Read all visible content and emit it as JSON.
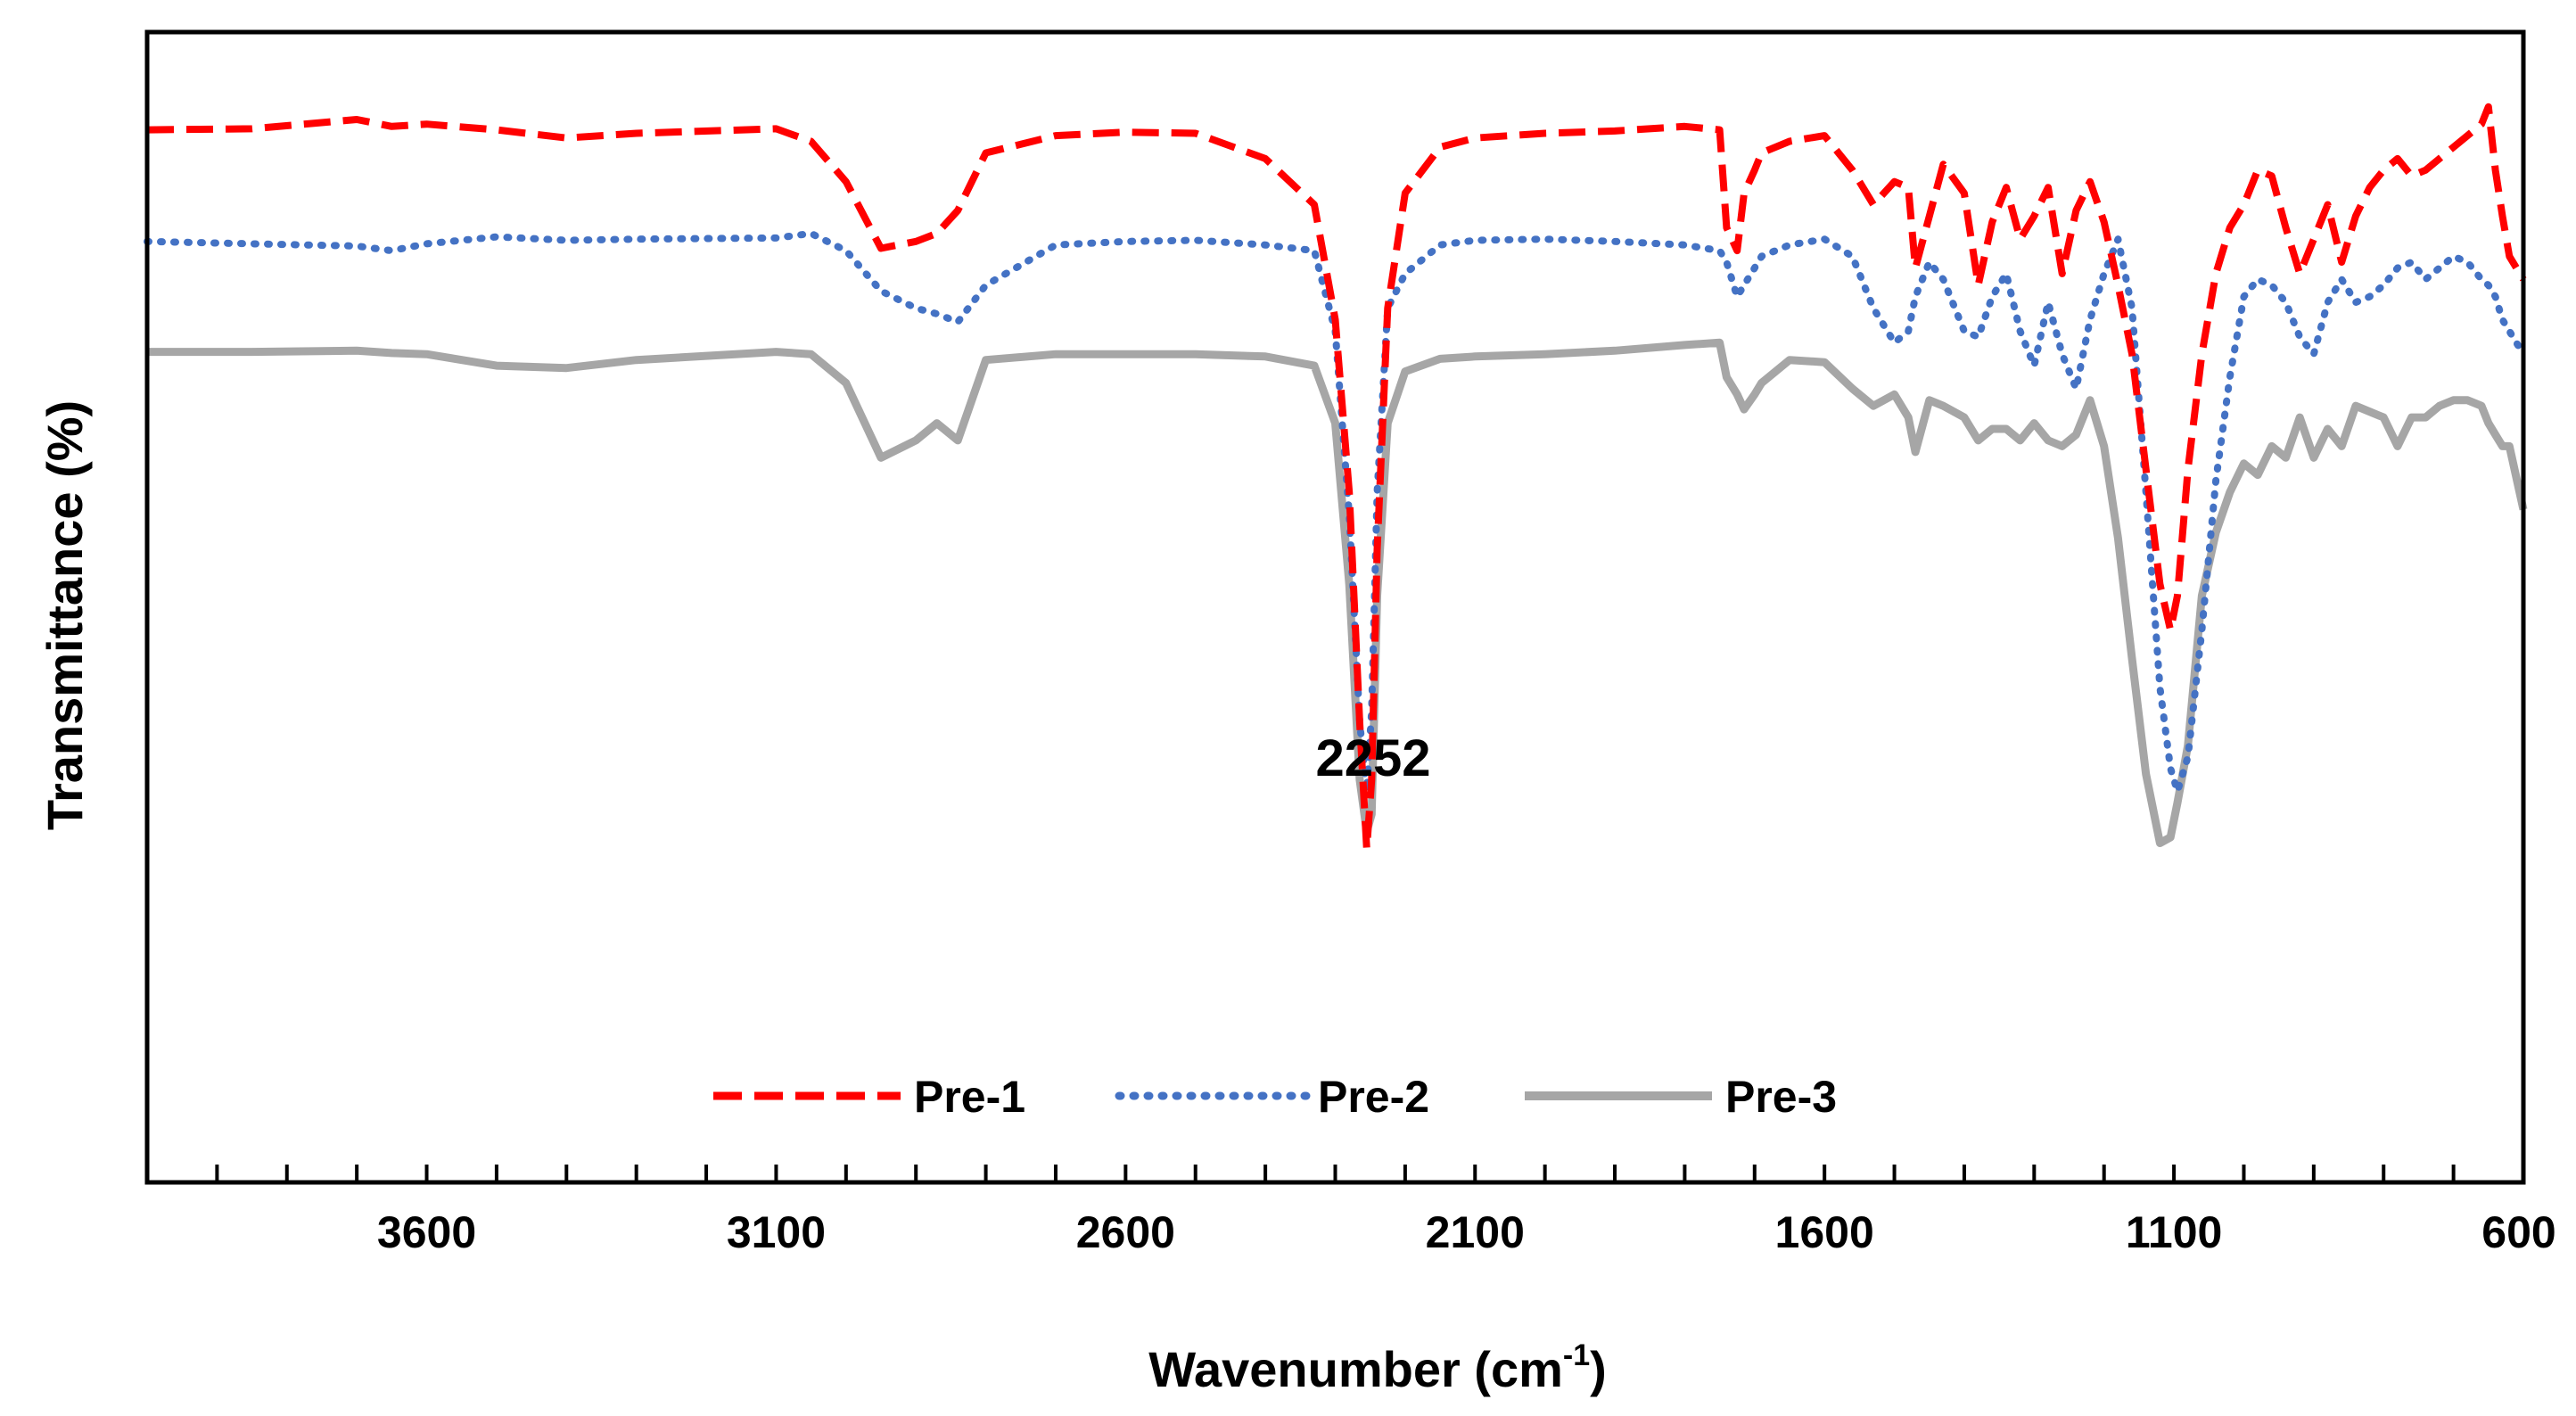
{
  "chart_data": {
    "type": "line",
    "title": "",
    "xlabel": "Wavenumber (cm",
    "xlabel_sup": "-1",
    "xlabel_end": ")",
    "ylabel": "Transmittance (%)",
    "xlim": [
      4000,
      600
    ],
    "x_reversed": true,
    "ylim": [
      0,
      100
    ],
    "x_ticks": [
      3600,
      3100,
      2600,
      2100,
      1600,
      1100,
      600
    ],
    "x_tick_labels": [
      "3600",
      "3100",
      "2600",
      "2100",
      "1600",
      "1100",
      "600"
    ],
    "minor_tick_step": 100,
    "grid": false,
    "legend_position": "bottom-center",
    "annotations": [
      {
        "text": "2252",
        "x": 2252,
        "y": 38
      }
    ],
    "series": [
      {
        "name": "Pre-1",
        "color": "#ff0000",
        "style": "dashed",
        "x": [
          4000,
          3850,
          3700,
          3650,
          3600,
          3500,
          3400,
          3300,
          3100,
          3050,
          3000,
          2950,
          2900,
          2870,
          2840,
          2800,
          2700,
          2600,
          2500,
          2400,
          2330,
          2300,
          2280,
          2265,
          2255,
          2248,
          2240,
          2225,
          2200,
          2150,
          2100,
          2000,
          1900,
          1800,
          1750,
          1740,
          1725,
          1715,
          1700,
          1690,
          1650,
          1600,
          1560,
          1530,
          1500,
          1480,
          1470,
          1450,
          1430,
          1400,
          1380,
          1360,
          1340,
          1320,
          1300,
          1280,
          1260,
          1240,
          1220,
          1200,
          1180,
          1160,
          1140,
          1120,
          1105,
          1095,
          1080,
          1060,
          1040,
          1020,
          1000,
          980,
          960,
          940,
          920,
          900,
          880,
          860,
          840,
          820,
          800,
          780,
          760,
          740,
          720,
          700,
          680,
          660,
          650,
          640,
          630,
          620,
          600
        ],
        "y": [
          91.5,
          91.6,
          92.4,
          91.8,
          92.0,
          91.5,
          90.8,
          91.2,
          91.6,
          90.5,
          87.0,
          81.2,
          81.8,
          82.5,
          84.5,
          89.5,
          91.0,
          91.3,
          91.2,
          89.0,
          85.0,
          75.0,
          60.0,
          40.0,
          29.0,
          35.0,
          55.0,
          76.0,
          86.0,
          90.0,
          90.8,
          91.2,
          91.4,
          91.8,
          91.5,
          83.0,
          81.0,
          86.0,
          88.0,
          89.5,
          90.5,
          91.0,
          88.0,
          85.0,
          87.0,
          86.5,
          79.5,
          84.0,
          88.5,
          86.0,
          78.0,
          83.5,
          86.5,
          82.0,
          84.0,
          86.5,
          79.0,
          84.5,
          87.0,
          83.5,
          78.0,
          72.0,
          62.0,
          52.0,
          48.0,
          51.0,
          62.0,
          72.0,
          79.0,
          83.0,
          85.0,
          88.0,
          87.5,
          83.0,
          79.0,
          82.0,
          85.0,
          80.0,
          84.0,
          86.5,
          88.0,
          89.0,
          87.5,
          88.0,
          89.0,
          90.0,
          91.0,
          92.0,
          93.5,
          88.0,
          84.0,
          80.5,
          78.5
        ]
      },
      {
        "name": "Pre-2",
        "color": "#4472c4",
        "style": "dotted",
        "x": [
          4000,
          3850,
          3700,
          3650,
          3600,
          3500,
          3400,
          3300,
          3100,
          3050,
          3000,
          2950,
          2900,
          2870,
          2840,
          2800,
          2700,
          2600,
          2500,
          2400,
          2330,
          2300,
          2280,
          2265,
          2255,
          2248,
          2240,
          2225,
          2200,
          2150,
          2100,
          2000,
          1900,
          1800,
          1750,
          1740,
          1725,
          1715,
          1700,
          1690,
          1650,
          1600,
          1560,
          1530,
          1500,
          1480,
          1470,
          1450,
          1430,
          1400,
          1380,
          1360,
          1340,
          1320,
          1300,
          1280,
          1260,
          1240,
          1220,
          1200,
          1180,
          1160,
          1140,
          1120,
          1105,
          1095,
          1080,
          1060,
          1040,
          1020,
          1000,
          980,
          960,
          940,
          920,
          900,
          880,
          860,
          840,
          820,
          800,
          780,
          760,
          740,
          720,
          700,
          680,
          660,
          650,
          640,
          630,
          620,
          600
        ],
        "y": [
          81.8,
          81.6,
          81.4,
          81.0,
          81.6,
          82.2,
          81.9,
          82.0,
          82.1,
          82.5,
          81.0,
          77.5,
          76.0,
          75.5,
          74.8,
          78.0,
          81.5,
          81.8,
          81.9,
          81.5,
          81.0,
          74.0,
          58.0,
          40.0,
          34.0,
          41.0,
          60.0,
          76.0,
          79.0,
          81.5,
          81.9,
          82.0,
          81.8,
          81.5,
          81.0,
          80.0,
          77.0,
          78.0,
          79.5,
          80.5,
          81.5,
          82.0,
          80.5,
          76.0,
          73.0,
          74.0,
          77.0,
          80.0,
          78.5,
          74.0,
          73.5,
          77.0,
          79.0,
          74.0,
          71.0,
          76.5,
          72.0,
          69.0,
          75.0,
          79.0,
          82.0,
          76.0,
          60.0,
          43.0,
          36.0,
          34.0,
          37.0,
          48.0,
          61.0,
          70.0,
          77.0,
          78.5,
          78.0,
          76.5,
          73.5,
          72.0,
          76.5,
          78.5,
          76.5,
          77.0,
          78.0,
          79.5,
          80.0,
          78.5,
          79.5,
          80.5,
          80.0,
          78.5,
          78.0,
          77.0,
          75.0,
          74.0,
          72.0
        ]
      },
      {
        "name": "Pre-3",
        "color": "#a6a6a6",
        "style": "solid",
        "x": [
          4000,
          3850,
          3700,
          3650,
          3600,
          3500,
          3400,
          3300,
          3100,
          3050,
          3000,
          2950,
          2900,
          2870,
          2840,
          2800,
          2700,
          2600,
          2500,
          2400,
          2330,
          2300,
          2280,
          2265,
          2255,
          2248,
          2240,
          2225,
          2200,
          2150,
          2100,
          2000,
          1900,
          1800,
          1750,
          1740,
          1725,
          1715,
          1700,
          1690,
          1650,
          1600,
          1560,
          1530,
          1500,
          1480,
          1470,
          1450,
          1430,
          1400,
          1380,
          1360,
          1340,
          1320,
          1300,
          1280,
          1260,
          1240,
          1220,
          1200,
          1180,
          1160,
          1140,
          1120,
          1105,
          1095,
          1080,
          1060,
          1040,
          1020,
          1000,
          980,
          960,
          940,
          920,
          900,
          880,
          860,
          840,
          820,
          800,
          780,
          760,
          740,
          720,
          700,
          680,
          660,
          650,
          640,
          630,
          620,
          600
        ],
        "y": [
          72.2,
          72.2,
          72.3,
          72.1,
          72.0,
          71.0,
          70.8,
          71.5,
          72.2,
          72.0,
          69.5,
          63.0,
          64.5,
          66.0,
          64.5,
          71.5,
          72.0,
          72.0,
          72.0,
          71.8,
          71.0,
          66.0,
          52.0,
          35.0,
          30.5,
          32.0,
          51.0,
          66.0,
          70.5,
          71.6,
          71.8,
          72.0,
          72.3,
          72.8,
          73.0,
          70.0,
          68.5,
          67.2,
          68.5,
          69.5,
          71.5,
          71.3,
          69.0,
          67.5,
          68.5,
          66.5,
          63.5,
          68.0,
          67.5,
          66.5,
          64.5,
          65.5,
          65.5,
          64.5,
          66.0,
          64.5,
          64.0,
          65.0,
          68.0,
          64.0,
          56.0,
          45.5,
          35.5,
          29.5,
          30.0,
          33.0,
          38.0,
          51.0,
          56.5,
          60.0,
          62.5,
          61.5,
          64.0,
          63.0,
          66.5,
          63.0,
          65.5,
          64.0,
          67.5,
          67.0,
          66.5,
          64.0,
          66.5,
          66.5,
          67.5,
          68.0,
          68.0,
          67.5,
          66.0,
          65.0,
          64.0,
          64.0,
          58.5
        ]
      }
    ]
  }
}
